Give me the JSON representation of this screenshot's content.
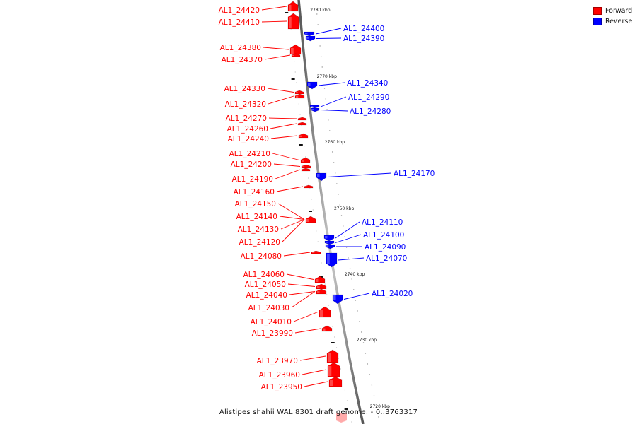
{
  "caption": "Alistipes shahii WAL 8301 draft genome. - 0..3763317",
  "legend": [
    {
      "label": "Forward",
      "color": "#ff0000"
    },
    {
      "label": "Reverse",
      "color": "#0000ff"
    }
  ],
  "colors": {
    "forward": "#ff0000",
    "reverse": "#0000ff",
    "backbone": "#888888"
  },
  "position_ticks": [
    {
      "kbp": 2780,
      "label": "2780 kbp"
    },
    {
      "kbp": 2770,
      "label": "2770 kbp"
    },
    {
      "kbp": 2760,
      "label": "2760 kbp"
    },
    {
      "kbp": 2750,
      "label": "2750 kbp"
    },
    {
      "kbp": 2740,
      "label": "2740 kbp"
    },
    {
      "kbp": 2730,
      "label": "2730 kbp"
    },
    {
      "kbp": 2720,
      "label": "2720 kbp"
    }
  ],
  "genes": [
    {
      "id": "AL1_24420",
      "strand": "forward"
    },
    {
      "id": "AL1_24410",
      "strand": "forward"
    },
    {
      "id": "AL1_24400",
      "strand": "reverse"
    },
    {
      "id": "AL1_24390",
      "strand": "reverse"
    },
    {
      "id": "AL1_24380",
      "strand": "forward"
    },
    {
      "id": "AL1_24370",
      "strand": "forward"
    },
    {
      "id": "AL1_24340",
      "strand": "reverse"
    },
    {
      "id": "AL1_24330",
      "strand": "forward"
    },
    {
      "id": "AL1_24320",
      "strand": "forward"
    },
    {
      "id": "AL1_24290",
      "strand": "reverse"
    },
    {
      "id": "AL1_24280",
      "strand": "reverse"
    },
    {
      "id": "AL1_24270",
      "strand": "forward"
    },
    {
      "id": "AL1_24260",
      "strand": "forward"
    },
    {
      "id": "AL1_24240",
      "strand": "forward"
    },
    {
      "id": "AL1_24210",
      "strand": "forward"
    },
    {
      "id": "AL1_24200",
      "strand": "forward"
    },
    {
      "id": "AL1_24190",
      "strand": "forward"
    },
    {
      "id": "AL1_24170",
      "strand": "reverse"
    },
    {
      "id": "AL1_24160",
      "strand": "forward"
    },
    {
      "id": "AL1_24150",
      "strand": "forward"
    },
    {
      "id": "AL1_24140",
      "strand": "forward"
    },
    {
      "id": "AL1_24130",
      "strand": "forward"
    },
    {
      "id": "AL1_24120",
      "strand": "forward"
    },
    {
      "id": "AL1_24110",
      "strand": "reverse"
    },
    {
      "id": "AL1_24100",
      "strand": "reverse"
    },
    {
      "id": "AL1_24090",
      "strand": "reverse"
    },
    {
      "id": "AL1_24080",
      "strand": "forward"
    },
    {
      "id": "AL1_24070",
      "strand": "reverse"
    },
    {
      "id": "AL1_24060",
      "strand": "forward"
    },
    {
      "id": "AL1_24050",
      "strand": "forward"
    },
    {
      "id": "AL1_24040",
      "strand": "forward"
    },
    {
      "id": "AL1_24030",
      "strand": "forward"
    },
    {
      "id": "AL1_24020",
      "strand": "reverse"
    },
    {
      "id": "AL1_24010",
      "strand": "forward"
    },
    {
      "id": "AL1_23990",
      "strand": "forward"
    },
    {
      "id": "AL1_23970",
      "strand": "forward"
    },
    {
      "id": "AL1_23960",
      "strand": "forward"
    },
    {
      "id": "AL1_23950",
      "strand": "forward"
    }
  ]
}
